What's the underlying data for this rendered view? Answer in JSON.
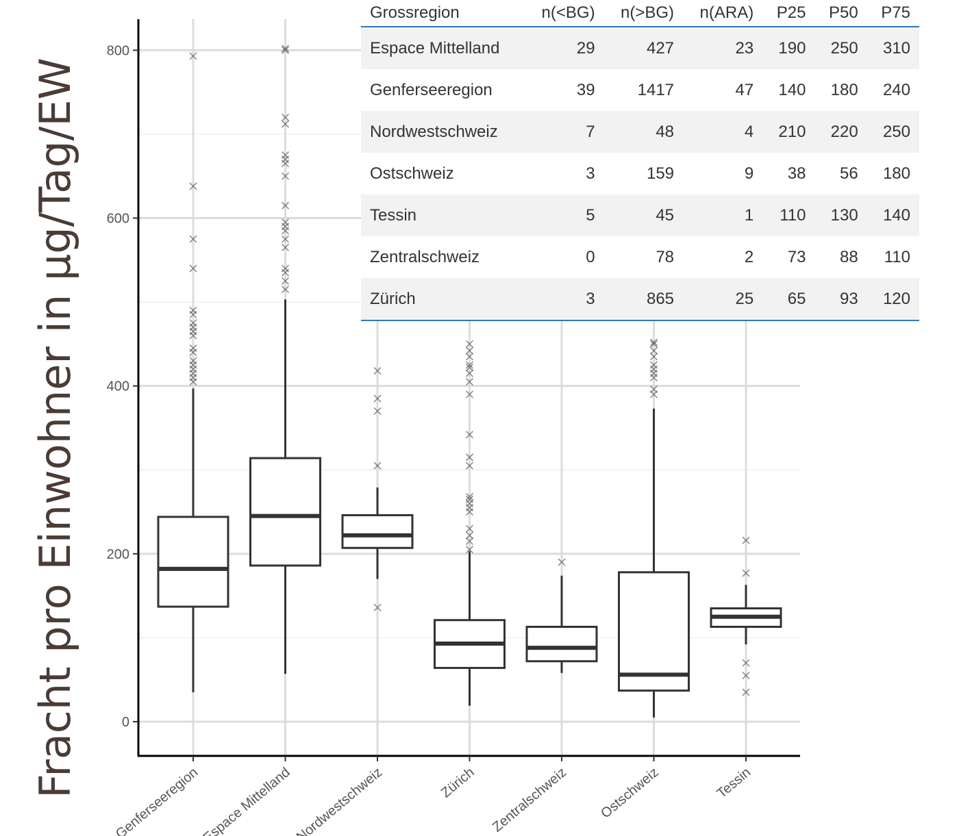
{
  "chart_data": {
    "type": "box",
    "ylabel": "Fracht pro Einwohner in µg/Tag/EW",
    "ylim": [
      -40,
      840
    ],
    "yticks": [
      0,
      200,
      400,
      600,
      800
    ],
    "categories": [
      "Genferseeregion",
      "Espace Mittelland",
      "Nordwestschweiz",
      "Zürich",
      "Zentralschweiz",
      "Ostschweiz",
      "Tessin"
    ],
    "boxes": [
      {
        "name": "Genferseeregion",
        "whisker_low": 35,
        "q1": 137,
        "median": 182,
        "q3": 244,
        "whisker_high": 397,
        "outliers": [
          405,
          410,
          415,
          420,
          425,
          430,
          440,
          445,
          460,
          465,
          470,
          475,
          485,
          490,
          540,
          575,
          638,
          793
        ]
      },
      {
        "name": "Espace Mittelland",
        "whisker_low": 57,
        "q1": 186,
        "median": 245,
        "q3": 314,
        "whisker_high": 503,
        "outliers": [
          515,
          525,
          535,
          540,
          565,
          575,
          585,
          590,
          595,
          615,
          650,
          665,
          670,
          675,
          712,
          720,
          800,
          802
        ]
      },
      {
        "name": "Nordwestschweiz",
        "whisker_low": 170,
        "q1": 207,
        "median": 222,
        "q3": 246,
        "whisker_high": 279,
        "outliers": [
          136,
          305,
          370,
          385,
          418
        ]
      },
      {
        "name": "Zürich",
        "whisker_low": 19,
        "q1": 64,
        "median": 93,
        "q3": 121,
        "whisker_high": 203,
        "outliers": [
          205,
          215,
          222,
          230,
          250,
          255,
          260,
          265,
          268,
          305,
          315,
          342,
          390,
          405,
          415,
          422,
          425,
          435,
          442,
          450
        ]
      },
      {
        "name": "Zentralschweiz",
        "whisker_low": 58,
        "q1": 72,
        "median": 88,
        "q3": 113,
        "whisker_high": 174,
        "outliers": [
          190
        ]
      },
      {
        "name": "Ostschweiz",
        "whisker_low": 5,
        "q1": 37,
        "median": 56,
        "q3": 178,
        "whisker_high": 373,
        "outliers": [
          390,
          396,
          410,
          415,
          420,
          425,
          435,
          442,
          450,
          452
        ]
      },
      {
        "name": "Tessin",
        "whisker_low": 92,
        "q1": 113,
        "median": 125,
        "q3": 135,
        "whisker_high": 163,
        "outliers": [
          35,
          55,
          70,
          177,
          216
        ]
      }
    ]
  },
  "table": {
    "headers": [
      "Grossregion",
      "n(<BG)",
      "n(>BG)",
      "n(ARA)",
      "P25",
      "P50",
      "P75"
    ],
    "rows": [
      [
        "Espace Mittelland",
        "29",
        "427",
        "23",
        "190",
        "250",
        "310"
      ],
      [
        "Genferseeregion",
        "39",
        "1417",
        "47",
        "140",
        "180",
        "240"
      ],
      [
        "Nordwestschweiz",
        "7",
        "48",
        "4",
        "210",
        "220",
        "250"
      ],
      [
        "Ostschweiz",
        "3",
        "159",
        "9",
        "38",
        "56",
        "180"
      ],
      [
        "Tessin",
        "5",
        "45",
        "1",
        "110",
        "130",
        "140"
      ],
      [
        "Zentralschweiz",
        "0",
        "78",
        "2",
        "73",
        "88",
        "110"
      ],
      [
        "Zürich",
        "3",
        "865",
        "25",
        "65",
        "93",
        "120"
      ]
    ]
  }
}
